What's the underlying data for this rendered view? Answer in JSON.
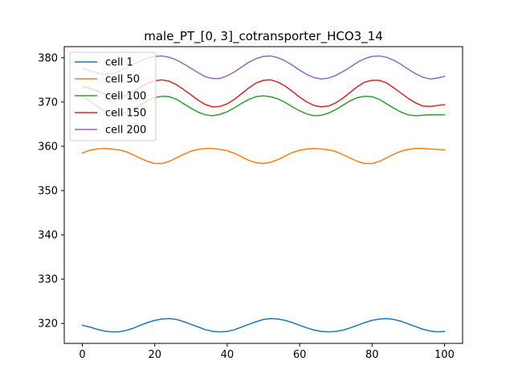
{
  "chart_data": {
    "type": "line",
    "title": "male_PT_[0, 3]_cotransporter_HCO3_14",
    "xlabel": "",
    "ylabel": "",
    "xlim": [
      -5,
      105
    ],
    "ylim": [
      315.5,
      382.5
    ],
    "xticks": [
      0,
      20,
      40,
      60,
      80,
      100
    ],
    "yticks": [
      320,
      330,
      340,
      350,
      360,
      370,
      380
    ],
    "grid": false,
    "legend": "upper-left",
    "series": [
      {
        "name": "cell 1",
        "color": "#1f77b4",
        "x": [
          0,
          2,
          4,
          6,
          8,
          10,
          12,
          14,
          16,
          18,
          20,
          22,
          24,
          26,
          28,
          30,
          32,
          34,
          36,
          38,
          40,
          42,
          44,
          46,
          48,
          50,
          52,
          54,
          56,
          58,
          60,
          62,
          64,
          66,
          68,
          70,
          72,
          74,
          76,
          78,
          80,
          82,
          84,
          86,
          88,
          90,
          92,
          94,
          96,
          98,
          100
        ],
        "y": [
          319.6,
          319.2,
          318.7,
          318.3,
          318.1,
          318.1,
          318.4,
          318.9,
          319.6,
          320.2,
          320.7,
          321.0,
          321.1,
          320.9,
          320.4,
          319.8,
          319.2,
          318.6,
          318.2,
          318.1,
          318.2,
          318.6,
          319.2,
          319.8,
          320.4,
          320.9,
          321.1,
          321.0,
          320.7,
          320.2,
          319.6,
          319.0,
          318.5,
          318.2,
          318.1,
          318.2,
          318.5,
          319.0,
          319.6,
          320.2,
          320.7,
          321.0,
          321.1,
          320.9,
          320.5,
          319.9,
          319.3,
          318.7,
          318.3,
          318.1,
          318.2
        ]
      },
      {
        "name": "cell 50",
        "color": "#ff7f0e",
        "x": [
          0,
          2,
          4,
          6,
          8,
          10,
          12,
          14,
          16,
          18,
          20,
          22,
          24,
          26,
          28,
          30,
          32,
          34,
          36,
          38,
          40,
          42,
          44,
          46,
          48,
          50,
          52,
          54,
          56,
          58,
          60,
          62,
          64,
          66,
          68,
          70,
          72,
          74,
          76,
          78,
          80,
          82,
          84,
          86,
          88,
          90,
          92,
          94,
          96,
          98,
          100
        ],
        "y": [
          358.5,
          359.1,
          359.4,
          359.5,
          359.4,
          359.2,
          358.8,
          358.1,
          357.3,
          356.6,
          356.1,
          356.1,
          356.6,
          357.4,
          358.2,
          358.9,
          359.3,
          359.5,
          359.5,
          359.3,
          359.0,
          358.4,
          357.6,
          356.8,
          356.3,
          356.1,
          356.4,
          357.0,
          357.8,
          358.6,
          359.1,
          359.4,
          359.5,
          359.4,
          359.2,
          358.8,
          358.1,
          357.3,
          356.6,
          356.1,
          356.1,
          356.6,
          357.4,
          358.2,
          358.9,
          359.3,
          359.5,
          359.5,
          359.4,
          359.3,
          359.2
        ]
      },
      {
        "name": "cell 100",
        "color": "#2ca02c",
        "x": [
          0,
          2,
          4,
          6,
          8,
          10,
          12,
          14,
          16,
          18,
          20,
          22,
          24,
          26,
          28,
          30,
          32,
          34,
          36,
          38,
          40,
          42,
          44,
          46,
          48,
          50,
          52,
          54,
          56,
          58,
          60,
          62,
          64,
          66,
          68,
          70,
          72,
          74,
          76,
          78,
          80,
          82,
          84,
          86,
          88,
          90,
          92,
          94,
          96,
          98,
          100
        ],
        "y": [
          371.3,
          370.3,
          369.1,
          368.0,
          367.3,
          367.1,
          367.5,
          368.3,
          369.3,
          370.3,
          371.0,
          371.3,
          371.2,
          370.6,
          369.6,
          368.6,
          367.7,
          367.1,
          366.9,
          367.2,
          367.8,
          368.7,
          369.7,
          370.6,
          371.2,
          371.4,
          371.2,
          370.7,
          369.9,
          368.9,
          368.0,
          367.3,
          366.9,
          367.0,
          367.5,
          368.3,
          369.3,
          370.3,
          371.0,
          371.3,
          371.2,
          370.6,
          369.6,
          368.6,
          367.7,
          367.1,
          366.9,
          367.0,
          367.1,
          367.1,
          367.1
        ]
      },
      {
        "name": "cell 150",
        "color": "#d62728",
        "x": [
          0,
          2,
          4,
          6,
          8,
          10,
          12,
          14,
          16,
          18,
          20,
          22,
          24,
          26,
          28,
          30,
          32,
          34,
          36,
          38,
          40,
          42,
          44,
          46,
          48,
          50,
          52,
          54,
          56,
          58,
          60,
          62,
          64,
          66,
          68,
          70,
          72,
          74,
          76,
          78,
          80,
          82,
          84,
          86,
          88,
          90,
          92,
          94,
          96,
          98,
          100
        ],
        "y": [
          373.5,
          373.1,
          372.5,
          371.8,
          371.3,
          371.2,
          371.5,
          372.3,
          373.3,
          374.2,
          374.8,
          375.0,
          374.7,
          373.9,
          372.8,
          371.6,
          370.4,
          369.4,
          368.9,
          369.0,
          369.6,
          370.6,
          371.9,
          373.2,
          374.3,
          374.9,
          375.0,
          374.5,
          373.6,
          372.4,
          371.1,
          370.0,
          369.2,
          368.9,
          369.1,
          369.8,
          370.9,
          372.2,
          373.5,
          374.5,
          374.9,
          374.9,
          374.3,
          373.2,
          372.0,
          370.8,
          369.8,
          369.1,
          369.0,
          369.2,
          369.4
        ]
      },
      {
        "name": "cell 200",
        "color": "#9467bd",
        "x": [
          0,
          2,
          4,
          6,
          8,
          10,
          12,
          14,
          16,
          18,
          20,
          22,
          24,
          26,
          28,
          30,
          32,
          34,
          36,
          38,
          40,
          42,
          44,
          46,
          48,
          50,
          52,
          54,
          56,
          58,
          60,
          62,
          64,
          66,
          68,
          70,
          72,
          74,
          76,
          78,
          80,
          82,
          84,
          86,
          88,
          90,
          92,
          94,
          96,
          98,
          100
        ],
        "y": [
          377.6,
          377.1,
          376.6,
          376.3,
          376.4,
          376.9,
          377.6,
          378.5,
          379.3,
          379.9,
          380.3,
          380.4,
          380.1,
          379.5,
          378.6,
          377.6,
          376.6,
          375.7,
          375.3,
          375.3,
          375.9,
          376.8,
          377.9,
          379.0,
          379.8,
          380.3,
          380.4,
          380.0,
          379.3,
          378.3,
          377.2,
          376.2,
          375.5,
          375.2,
          375.4,
          376.0,
          376.9,
          377.9,
          379.0,
          379.8,
          380.3,
          380.4,
          380.1,
          379.4,
          378.5,
          377.4,
          376.4,
          375.6,
          375.2,
          375.4,
          375.8
        ]
      }
    ]
  }
}
